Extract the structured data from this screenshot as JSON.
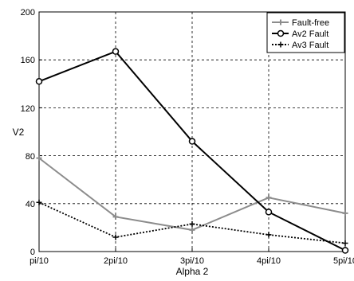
{
  "chart_data": {
    "type": "line",
    "categories": [
      "pi/10",
      "2pi/10",
      "3pi/10",
      "4pi/10",
      "5pi/10"
    ],
    "xlabel": "Alpha 2",
    "ylabel": "V2",
    "ylim": [
      0,
      200
    ],
    "yticks": [
      "0",
      "40",
      "80",
      "120",
      "160",
      "200"
    ],
    "grid": true,
    "legend_position": "top-right",
    "series": [
      {
        "name": "Fault-free",
        "values": [
          78,
          29,
          18,
          45,
          32
        ],
        "color": "#8c8c8c",
        "line_style": "solid",
        "marker": "plus"
      },
      {
        "name": "Av2 Fault",
        "values": [
          142,
          167,
          92,
          33,
          1
        ],
        "color": "#000000",
        "line_style": "solid",
        "marker": "circle"
      },
      {
        "name": "Av3 Fault",
        "values": [
          41,
          12,
          23,
          14,
          7
        ],
        "color": "#000000",
        "line_style": "dotted",
        "marker": "plus"
      }
    ]
  }
}
